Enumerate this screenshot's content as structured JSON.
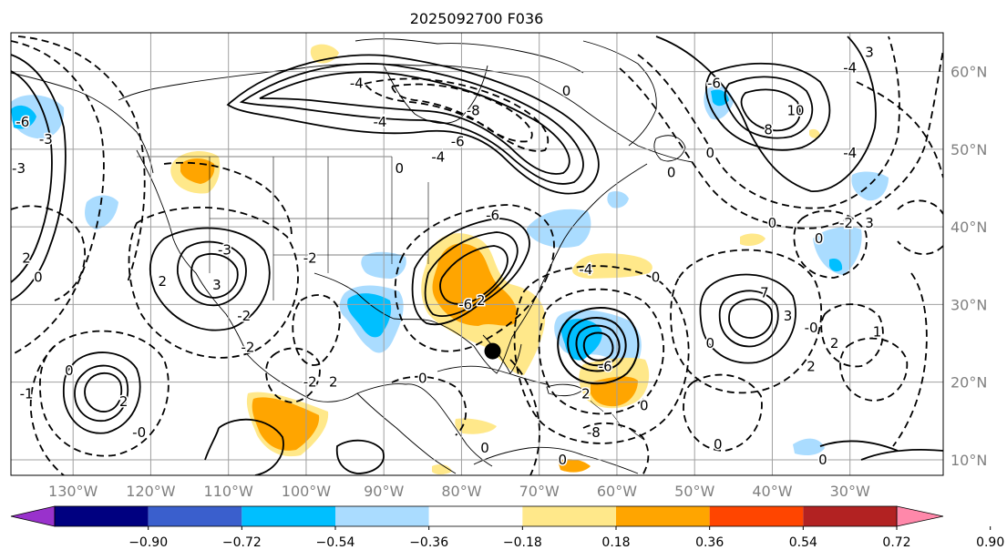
{
  "title": "2025092700 F036",
  "map": {
    "lon_labels": [
      "130°W",
      "120°W",
      "110°W",
      "100°W",
      "90°W",
      "80°W",
      "70°W",
      "60°W",
      "50°W",
      "40°W",
      "30°W"
    ],
    "lat_labels": [
      "60°N",
      "50°N",
      "40°N",
      "30°N",
      "20°N",
      "10°N"
    ],
    "contour_labels": [
      {
        "text": "-6",
        "lon": -136.5,
        "lat": 53.5
      },
      {
        "text": "-3",
        "lon": -133.5,
        "lat": 51.3
      },
      {
        "text": "-3",
        "lon": -137.0,
        "lat": 47.5
      },
      {
        "text": "2",
        "lon": -136.0,
        "lat": 36.0
      },
      {
        "text": "0",
        "lon": -134.5,
        "lat": 33.5
      },
      {
        "text": "2",
        "lon": -118.5,
        "lat": 33.0
      },
      {
        "text": "3",
        "lon": -111.5,
        "lat": 32.5
      },
      {
        "text": "-3",
        "lon": -110.5,
        "lat": 37.0
      },
      {
        "text": "-2",
        "lon": -108.0,
        "lat": 28.5
      },
      {
        "text": "-4",
        "lon": -93.5,
        "lat": 58.5
      },
      {
        "text": "-6",
        "lon": -80.5,
        "lat": 51.0
      },
      {
        "text": "-8",
        "lon": -78.5,
        "lat": 55.0
      },
      {
        "text": "-4",
        "lon": -83.0,
        "lat": 49.0
      },
      {
        "text": "0",
        "lon": -66.5,
        "lat": 57.5
      },
      {
        "text": "-4",
        "lon": -90.5,
        "lat": 53.5
      },
      {
        "text": "-6",
        "lon": -47.5,
        "lat": 58.5
      },
      {
        "text": "10",
        "lon": -37.0,
        "lat": 55.0
      },
      {
        "text": "8",
        "lon": -40.5,
        "lat": 52.5
      },
      {
        "text": "-4",
        "lon": -30.0,
        "lat": 60.5
      },
      {
        "text": "3",
        "lon": -27.5,
        "lat": 62.5
      },
      {
        "text": "0",
        "lon": -48.0,
        "lat": 49.5
      },
      {
        "text": "-4",
        "lon": -30.0,
        "lat": 49.5
      },
      {
        "text": "0",
        "lon": -40.0,
        "lat": 40.5
      },
      {
        "text": "-2",
        "lon": -30.5,
        "lat": 40.5
      },
      {
        "text": "3",
        "lon": -27.5,
        "lat": 40.5
      },
      {
        "text": "0",
        "lon": -34.0,
        "lat": 38.5
      },
      {
        "text": "3",
        "lon": -38.0,
        "lat": 28.5
      },
      {
        "text": "7",
        "lon": -41.0,
        "lat": 31.5
      },
      {
        "text": "0",
        "lon": -48.0,
        "lat": 25.0
      },
      {
        "text": "2",
        "lon": -32.0,
        "lat": 25.0
      },
      {
        "text": "-0",
        "lon": -35.0,
        "lat": 27.0
      },
      {
        "text": "2",
        "lon": -35.0,
        "lat": 22.0
      },
      {
        "text": "1",
        "lon": -26.5,
        "lat": 26.5
      },
      {
        "text": "-4",
        "lon": -64.0,
        "lat": 34.5
      },
      {
        "text": "-6",
        "lon": -61.5,
        "lat": 22.0
      },
      {
        "text": "0",
        "lon": -56.5,
        "lat": 17.0
      },
      {
        "text": "2",
        "lon": -64.0,
        "lat": 18.5
      },
      {
        "text": "0",
        "lon": -47.0,
        "lat": 12.0
      },
      {
        "text": "0",
        "lon": -33.5,
        "lat": 10.0
      },
      {
        "text": "-2",
        "lon": -99.5,
        "lat": 36.0
      },
      {
        "text": "-2",
        "lon": -107.5,
        "lat": 24.5
      },
      {
        "text": "2",
        "lon": -123.5,
        "lat": 17.5
      },
      {
        "text": "0",
        "lon": -130.5,
        "lat": 21.5
      },
      {
        "text": "-1",
        "lon": -136.0,
        "lat": 18.5
      },
      {
        "text": "-0",
        "lon": -121.5,
        "lat": 13.5
      },
      {
        "text": "-2",
        "lon": -99.5,
        "lat": 20.0
      },
      {
        "text": "2",
        "lon": -77.5,
        "lat": 30.5
      },
      {
        "text": "-6",
        "lon": -79.5,
        "lat": 30.0
      },
      {
        "text": "0",
        "lon": -85.0,
        "lat": 20.5
      },
      {
        "text": "2",
        "lon": -96.5,
        "lat": 20.0
      },
      {
        "text": "0",
        "lon": -88.0,
        "lat": 47.5
      },
      {
        "text": "0",
        "lon": -77.0,
        "lat": 11.5
      },
      {
        "text": "0",
        "lon": -67.0,
        "lat": 10.0
      },
      {
        "text": "0",
        "lon": -55.0,
        "lat": 33.5
      },
      {
        "text": "0",
        "lon": -53.0,
        "lat": 47.0
      },
      {
        "text": "-6",
        "lon": -76.0,
        "lat": 41.5
      },
      {
        "text": "-8",
        "lon": -63.0,
        "lat": 13.5
      }
    ],
    "storm_marker": {
      "lon": -76.0,
      "lat": 24.0
    }
  },
  "colorbar": {
    "ticks": [
      "−0.90",
      "−0.72",
      "−0.54",
      "−0.36",
      "−0.18",
      "0.18",
      "0.36",
      "0.54",
      "0.72",
      "0.90"
    ],
    "under_color": "#9932cc",
    "over_color": "#ff88aa",
    "bins": [
      {
        "from": -0.9,
        "to": -0.72,
        "color": "#000080"
      },
      {
        "from": -0.72,
        "to": -0.54,
        "color": "#3a5fcd"
      },
      {
        "from": -0.54,
        "to": -0.36,
        "color": "#00bfff"
      },
      {
        "from": -0.36,
        "to": -0.18,
        "color": "#aadcff"
      },
      {
        "from": -0.18,
        "to": 0.18,
        "color": "#ffffff"
      },
      {
        "from": 0.18,
        "to": 0.36,
        "color": "#ffe88a"
      },
      {
        "from": 0.36,
        "to": 0.54,
        "color": "#ffa500"
      },
      {
        "from": 0.54,
        "to": 0.72,
        "color": "#ff4500"
      },
      {
        "from": 0.72,
        "to": 0.9,
        "color": "#b22222"
      }
    ]
  },
  "colors": {
    "grid": "#a0a0a0",
    "axis_label": "#808080",
    "contour": "#000000",
    "coast": "#000000"
  }
}
